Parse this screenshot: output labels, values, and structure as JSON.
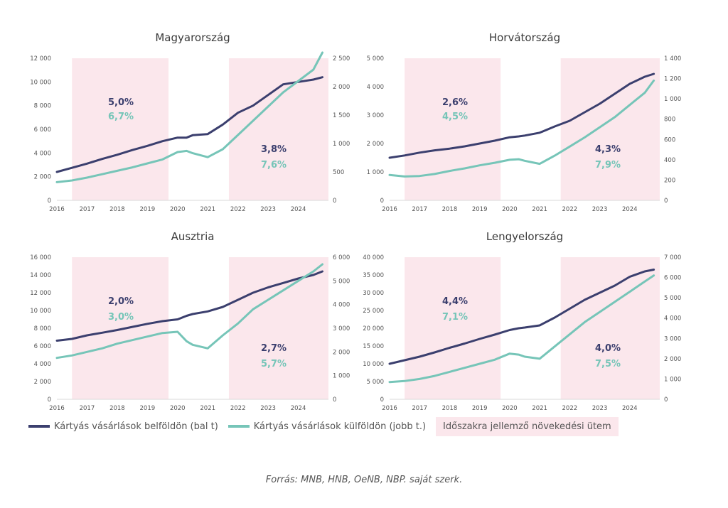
{
  "legend": {
    "domestic": "Kártyás vásárlások belföldön (bal t)",
    "abroad": "Kártyás vásárlások külföldön (jobb t.)",
    "period": "Időszakra jellemző növekedési ütem"
  },
  "source": "Forrás: MNB, HNB, OeNB, NBP. saját szerk.",
  "colors": {
    "domestic": "#3b3f6e",
    "abroad": "#76c5b8",
    "shade": "#fbe7ec"
  },
  "chart_data": [
    {
      "type": "line",
      "title": "Magyarország",
      "x": [
        2016,
        2016.5,
        2017,
        2017.5,
        2018,
        2018.5,
        2019,
        2019.5,
        2020,
        2020.3,
        2020.5,
        2021,
        2021.5,
        2022,
        2022.5,
        2023,
        2023.5,
        2024,
        2024.5,
        2024.8
      ],
      "series": [
        {
          "name": "Kártyás vásárlások belföldön (bal t)",
          "axis": "left",
          "values": [
            2400,
            2750,
            3100,
            3500,
            3850,
            4250,
            4600,
            5000,
            5300,
            5300,
            5500,
            5600,
            6400,
            7400,
            8000,
            8900,
            9800,
            10000,
            10200,
            10400
          ]
        },
        {
          "name": "Kártyás vásárlások külföldön (jobb t.)",
          "axis": "right",
          "values": [
            320,
            350,
            400,
            460,
            520,
            580,
            650,
            720,
            850,
            870,
            830,
            760,
            900,
            1150,
            1400,
            1650,
            1900,
            2100,
            2300,
            2600
          ]
        }
      ],
      "left_ylim": [
        0,
        12000
      ],
      "left_ticks": [
        "0",
        "2 000",
        "4 000",
        "6 000",
        "8 000",
        "10 000",
        "12 000"
      ],
      "right_ylim": [
        0,
        2500
      ],
      "right_ticks": [
        "0",
        "500",
        "1 000",
        "1 500",
        "2 000",
        "2 500"
      ],
      "xlim": [
        2016,
        2025
      ],
      "xticks": [
        "2016",
        "2017",
        "2018",
        "2019",
        "2020",
        "2021",
        "2022",
        "2023",
        "2024"
      ],
      "shaded_periods": [
        [
          2016.5,
          2019.7
        ],
        [
          2021.7,
          2025
        ]
      ],
      "annotations": [
        {
          "text": "5,0%",
          "series": "domestic"
        },
        {
          "text": "6,7%",
          "series": "abroad"
        },
        {
          "text": "3,8%",
          "series": "domestic"
        },
        {
          "text": "7,6%",
          "series": "abroad"
        }
      ]
    },
    {
      "type": "line",
      "title": "Horvátország",
      "x": [
        2016,
        2016.5,
        2017,
        2017.5,
        2018,
        2018.5,
        2019,
        2019.5,
        2020,
        2020.3,
        2020.5,
        2021,
        2021.5,
        2022,
        2022.5,
        2023,
        2023.5,
        2024,
        2024.5,
        2024.8
      ],
      "series": [
        {
          "name": "Kártyás vásárlások belföldön (bal t)",
          "axis": "left",
          "values": [
            1500,
            1580,
            1680,
            1760,
            1820,
            1900,
            2000,
            2100,
            2220,
            2250,
            2280,
            2380,
            2600,
            2800,
            3100,
            3400,
            3750,
            4100,
            4350,
            4450
          ]
        },
        {
          "name": "Kártyás vásárlások külföldön (jobb t.)",
          "axis": "right",
          "values": [
            250,
            235,
            240,
            260,
            290,
            315,
            345,
            370,
            400,
            405,
            390,
            360,
            440,
            530,
            620,
            720,
            820,
            940,
            1060,
            1180
          ]
        }
      ],
      "left_ylim": [
        0,
        5000
      ],
      "left_ticks": [
        "0",
        "1 000",
        "2 000",
        "3 000",
        "4 000",
        "5 000"
      ],
      "right_ylim": [
        0,
        1400
      ],
      "right_ticks": [
        "0",
        "200",
        "400",
        "600",
        "800",
        "1 000",
        "1 200",
        "1 400"
      ],
      "xlim": [
        2016,
        2025
      ],
      "xticks": [
        "2016",
        "2017",
        "2018",
        "2019",
        "2020",
        "2021",
        "2022",
        "2023",
        "2024"
      ],
      "shaded_periods": [
        [
          2016.5,
          2019.7
        ],
        [
          2021.7,
          2025
        ]
      ],
      "annotations": [
        {
          "text": "2,6%",
          "series": "domestic"
        },
        {
          "text": "4,5%",
          "series": "abroad"
        },
        {
          "text": "4,3%",
          "series": "domestic"
        },
        {
          "text": "7,9%",
          "series": "abroad"
        }
      ]
    },
    {
      "type": "line",
      "title": "Ausztria",
      "x": [
        2016,
        2016.5,
        2017,
        2017.5,
        2018,
        2018.5,
        2019,
        2019.5,
        2020,
        2020.3,
        2020.5,
        2021,
        2021.5,
        2022,
        2022.5,
        2023,
        2023.5,
        2024,
        2024.5,
        2024.8
      ],
      "series": [
        {
          "name": "Kártyás vásárlások belföldön (bal t)",
          "axis": "left",
          "values": [
            6600,
            6800,
            7200,
            7500,
            7800,
            8150,
            8500,
            8800,
            9000,
            9400,
            9600,
            9900,
            10400,
            11200,
            12000,
            12600,
            13100,
            13600,
            14000,
            14400
          ]
        },
        {
          "name": "Kártyás vásárlások külföldön (jobb t.)",
          "axis": "right",
          "values": [
            1750,
            1850,
            2000,
            2150,
            2350,
            2500,
            2650,
            2800,
            2850,
            2450,
            2300,
            2150,
            2700,
            3200,
            3800,
            4200,
            4600,
            5000,
            5400,
            5700
          ]
        }
      ],
      "left_ylim": [
        0,
        16000
      ],
      "left_ticks": [
        "0",
        "2 000",
        "4 000",
        "6 000",
        "8 000",
        "10 000",
        "12 000",
        "14 000",
        "16 000"
      ],
      "right_ylim": [
        0,
        6000
      ],
      "right_ticks": [
        "0",
        "1 000",
        "2 000",
        "3 000",
        "4 000",
        "5 000",
        "6 000"
      ],
      "xlim": [
        2016,
        2025
      ],
      "xticks": [
        "2016",
        "2017",
        "2018",
        "2019",
        "2020",
        "2021",
        "2022",
        "2023",
        "2024"
      ],
      "shaded_periods": [
        [
          2016.5,
          2019.7
        ],
        [
          2021.7,
          2025
        ]
      ],
      "annotations": [
        {
          "text": "2,0%",
          "series": "domestic"
        },
        {
          "text": "3,0%",
          "series": "abroad"
        },
        {
          "text": "2,7%",
          "series": "domestic"
        },
        {
          "text": "5,7%",
          "series": "abroad"
        }
      ]
    },
    {
      "type": "line",
      "title": "Lengyelország",
      "x": [
        2016,
        2016.5,
        2017,
        2017.5,
        2018,
        2018.5,
        2019,
        2019.5,
        2020,
        2020.3,
        2020.5,
        2021,
        2021.5,
        2022,
        2022.5,
        2023,
        2023.5,
        2024,
        2024.5,
        2024.8
      ],
      "series": [
        {
          "name": "Kártyás vásárlások belföldön (bal t)",
          "axis": "left",
          "values": [
            10000,
            11000,
            12000,
            13200,
            14500,
            15700,
            17000,
            18200,
            19500,
            20000,
            20200,
            20800,
            23000,
            25500,
            28000,
            30000,
            32000,
            34500,
            36000,
            36500
          ]
        },
        {
          "name": "Kártyás vásárlások külföldön (jobb t.)",
          "axis": "right",
          "values": [
            850,
            900,
            1000,
            1150,
            1350,
            1550,
            1750,
            1950,
            2250,
            2200,
            2100,
            2000,
            2600,
            3200,
            3800,
            4300,
            4800,
            5300,
            5800,
            6100
          ]
        }
      ],
      "left_ylim": [
        0,
        40000
      ],
      "left_ticks": [
        "0",
        "5 000",
        "10 000",
        "15 000",
        "20 000",
        "25 000",
        "30 000",
        "35 000",
        "40 000"
      ],
      "right_ylim": [
        0,
        7000
      ],
      "right_ticks": [
        "0",
        "1 000",
        "2 000",
        "3 000",
        "4 000",
        "5 000",
        "6 000",
        "7 000"
      ],
      "xlim": [
        2016,
        2025
      ],
      "xticks": [
        "2016",
        "2017",
        "2018",
        "2019",
        "2020",
        "2021",
        "2022",
        "2023",
        "2024"
      ],
      "shaded_periods": [
        [
          2016.5,
          2019.7
        ],
        [
          2021.7,
          2025
        ]
      ],
      "annotations": [
        {
          "text": "4,4%",
          "series": "domestic"
        },
        {
          "text": "7,1%",
          "series": "abroad"
        },
        {
          "text": "4,0%",
          "series": "domestic"
        },
        {
          "text": "7,5%",
          "series": "abroad"
        }
      ]
    }
  ]
}
